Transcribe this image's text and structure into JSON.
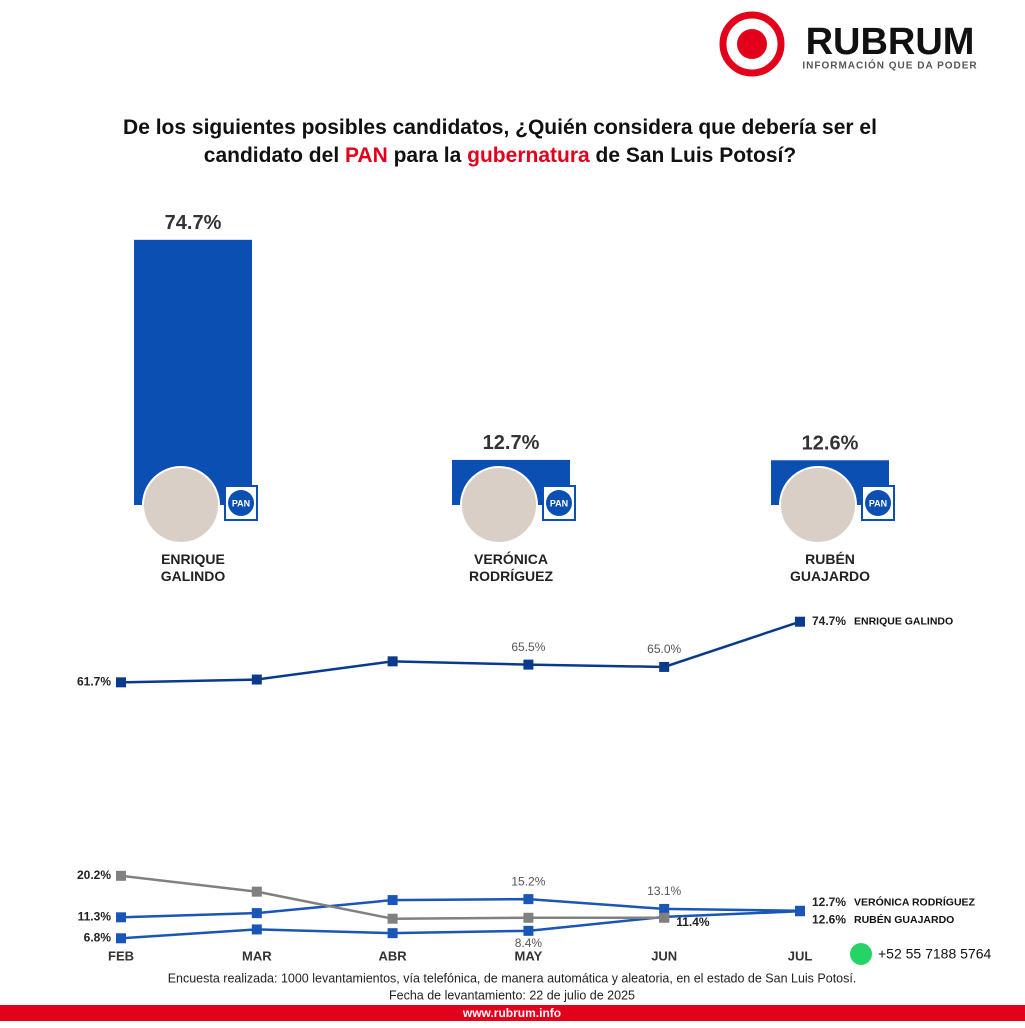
{
  "header": {
    "logo": "RUBRUM",
    "tagline": "INFORMACIÓN QUE DA PODER"
  },
  "title": [
    "De los siguientes posibles candidatos, ¿Quién considera que debería ser el",
    "candidato del ",
    "PAN",
    " para la ",
    "gubernatura",
    " de San Luis Potosí?"
  ],
  "chart_data": [
    {
      "type": "bar",
      "categories": [
        "ENRIQUE GALINDO",
        "VERÓNICA RODRÍGUEZ",
        "RUBÉN GUAJARDO"
      ],
      "values": [
        74.7,
        12.7,
        12.6
      ],
      "value_labels": [
        "74.7%",
        "12.7%",
        "12.6%"
      ],
      "color": "#0b4fb3",
      "ylim": [
        0,
        80
      ]
    },
    {
      "type": "line",
      "x": [
        "FEB",
        "MAR",
        "ABR",
        "MAY",
        "JUN",
        "JUL"
      ],
      "ylim": [
        0,
        80
      ],
      "series": [
        {
          "name": "ENRIQUE GALINDO",
          "color": "#0a3a8c",
          "values": [
            61.7,
            62.3,
            66.2,
            65.5,
            65.0,
            74.7
          ],
          "value_labels": [
            "61.7%",
            null,
            null,
            "65.5%",
            "65.0%",
            "74.7%"
          ]
        },
        {
          "name": "VERÓNICA RODRÍGUEZ",
          "color": "#1a56b8",
          "values": [
            11.3,
            12.2,
            15.0,
            15.2,
            13.1,
            12.7
          ],
          "value_labels": [
            "11.3%",
            null,
            null,
            "15.2%",
            "13.1%",
            "12.7%"
          ]
        },
        {
          "name": "RUBÉN GUAJARDO",
          "color": "#1a56b8",
          "values": [
            6.8,
            8.7,
            7.9,
            8.4,
            11.4,
            12.6
          ],
          "value_labels": [
            "6.8%",
            null,
            null,
            "8.4%",
            "11.4%",
            "12.6%"
          ]
        },
        {
          "color": "#808080",
          "values": [
            20.2,
            16.8,
            11.0,
            11.2,
            11.2,
            null
          ],
          "value_labels": [
            "20.2%",
            null,
            null,
            null,
            null,
            null
          ]
        }
      ]
    }
  ],
  "footer": {
    "note": "Encuesta realizada: 1000 levantamientos, vía telefónica, de manera automática y aleatoria, en el estado de San Luis Potosí.",
    "date": "Fecha de levantamiento: 22 de julio de 2025",
    "phone": "+52 55 7188 5764",
    "website": "www.rubrum.info"
  }
}
